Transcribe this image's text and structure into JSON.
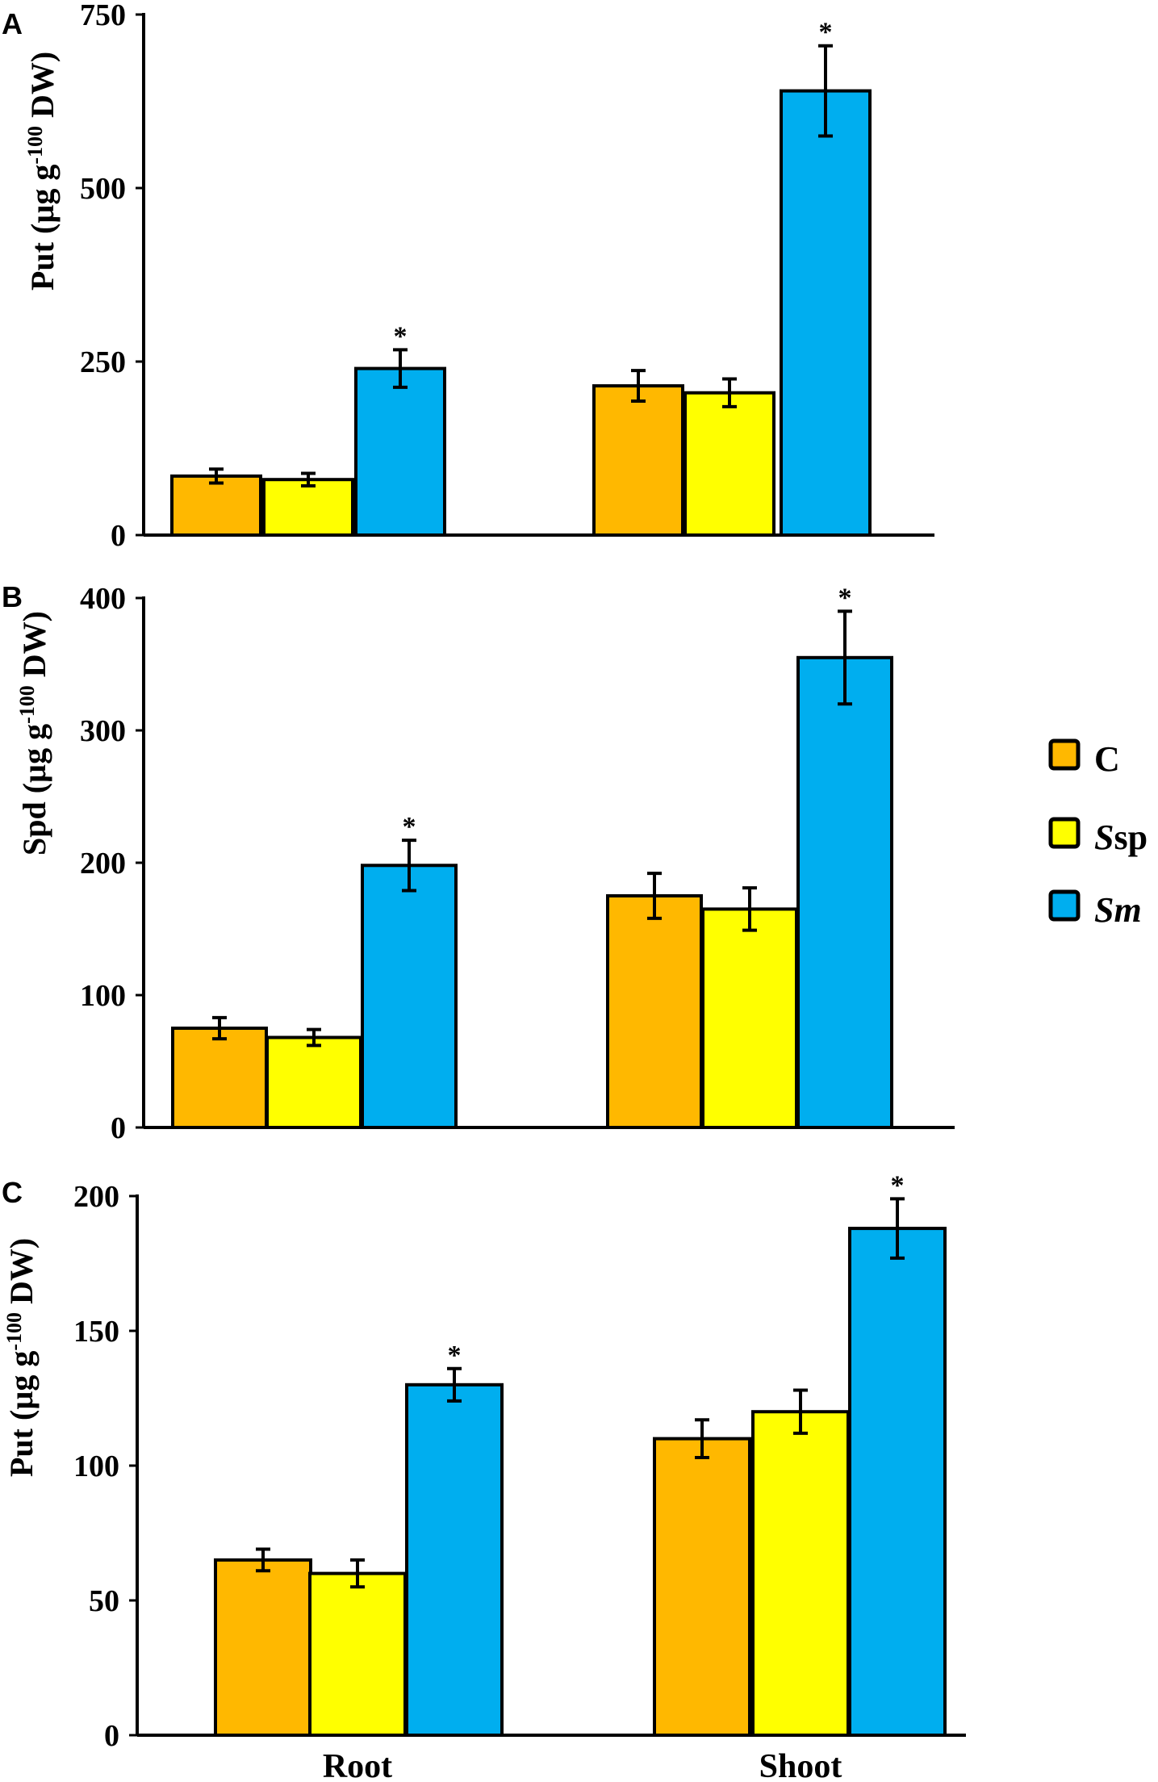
{
  "chart_data": [
    {
      "panel": "A",
      "type": "bar",
      "ylabel_main": "Put (µg g",
      "ylabel_sup": "-100",
      "ylabel_tail": " DW)",
      "ylim": [
        0,
        750
      ],
      "yticks": [
        0,
        250,
        500,
        750
      ],
      "categories": [
        "Root",
        "Shoot"
      ],
      "series": [
        {
          "name": "C",
          "values": [
            85,
            215
          ],
          "errors": [
            10,
            22
          ]
        },
        {
          "name": "Ssp",
          "values": [
            80,
            205
          ],
          "errors": [
            9,
            20
          ]
        },
        {
          "name": "Sm",
          "values": [
            240,
            640
          ],
          "errors": [
            27,
            65
          ]
        }
      ],
      "significance": [
        "*",
        "*"
      ]
    },
    {
      "panel": "B",
      "type": "bar",
      "ylabel_main": "Spd (µg g",
      "ylabel_sup": "-100",
      "ylabel_tail": " DW)",
      "ylim": [
        0,
        400
      ],
      "yticks": [
        0,
        100,
        200,
        300,
        400
      ],
      "categories": [
        "Root",
        "Shoot"
      ],
      "series": [
        {
          "name": "C",
          "values": [
            75,
            175
          ],
          "errors": [
            8,
            17
          ]
        },
        {
          "name": "Ssp",
          "values": [
            68,
            165
          ],
          "errors": [
            6,
            16
          ]
        },
        {
          "name": "Sm",
          "values": [
            198,
            355
          ],
          "errors": [
            19,
            35
          ]
        }
      ],
      "significance": [
        "*",
        "*"
      ]
    },
    {
      "panel": "C",
      "type": "bar",
      "ylabel_main": "Put (µg g",
      "ylabel_sup": "-100",
      "ylabel_tail": " DW)",
      "ylim": [
        0,
        200
      ],
      "yticks": [
        0,
        50,
        100,
        150,
        200
      ],
      "categories": [
        "Root",
        "Shoot"
      ],
      "series": [
        {
          "name": "C",
          "values": [
            65,
            110
          ],
          "errors": [
            4,
            7
          ]
        },
        {
          "name": "Ssp",
          "values": [
            60,
            120
          ],
          "errors": [
            5,
            8
          ]
        },
        {
          "name": "Sm",
          "values": [
            130,
            188
          ],
          "errors": [
            6,
            11
          ]
        }
      ],
      "significance": [
        "*",
        "*"
      ]
    }
  ],
  "legend": {
    "items": [
      {
        "label": "C",
        "italic_part": "",
        "roman_part": "C"
      },
      {
        "label": "Ssp",
        "italic_part": "S",
        "roman_part": "sp"
      },
      {
        "label": "Sm",
        "italic_part": "Sm",
        "roman_part": ""
      }
    ]
  },
  "colors": {
    "C": "#FFB800",
    "Ssp": "#FFFF00",
    "Sm": "#00AEEF"
  }
}
